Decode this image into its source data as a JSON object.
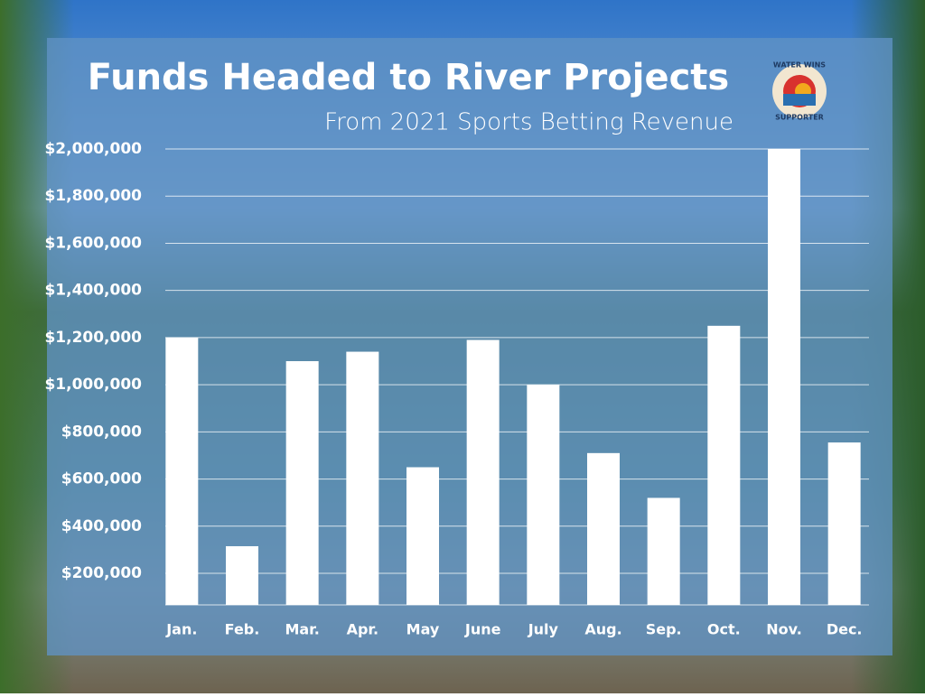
{
  "chart_data": {
    "type": "bar",
    "title": "Funds Headed to River Projects",
    "subtitle": "From 2021 Sports Betting Revenue",
    "logo": {
      "top": "WATER WINS",
      "bottom": "SUPPORTER"
    },
    "categories": [
      "Jan.",
      "Feb.",
      "Mar.",
      "Apr.",
      "May",
      "June",
      "July",
      "Aug.",
      "Sep.",
      "Oct.",
      "Nov.",
      "Dec."
    ],
    "values": [
      1200000,
      315000,
      1100000,
      1140000,
      650000,
      1190000,
      1000000,
      710000,
      520000,
      1250000,
      2000000,
      755000
    ],
    "color": "#ffffff",
    "ylim": [
      66000,
      2000000
    ],
    "yticks": [
      {
        "value": 200000,
        "label": "$200,000"
      },
      {
        "value": 400000,
        "label": "$400,000"
      },
      {
        "value": 600000,
        "label": "$600,000"
      },
      {
        "value": 800000,
        "label": "$800,000"
      },
      {
        "value": 1000000,
        "label": "$1,000,000"
      },
      {
        "value": 1200000,
        "label": "$1,200,000"
      },
      {
        "value": 1400000,
        "label": "$1,400,000"
      },
      {
        "value": 1600000,
        "label": "$1,600,000"
      },
      {
        "value": 1800000,
        "label": "$1,800,000"
      },
      {
        "value": 2000000,
        "label": "$2,000,000"
      }
    ],
    "grid": true
  }
}
